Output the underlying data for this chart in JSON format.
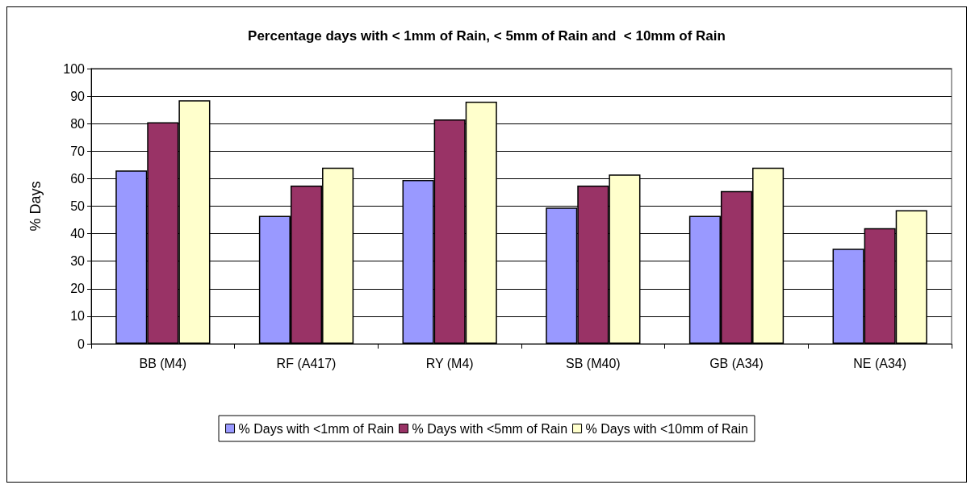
{
  "chart_data": {
    "type": "bar",
    "title": "Percentage days with < 1mm of Rain, < 5mm of Rain and  < 10mm of Rain",
    "ylabel": "% Days",
    "categories": [
      "BB (M4)",
      "RF (A417)",
      "RY (M4)",
      "SB (M40)",
      "GB (A34)",
      "NE (A34)"
    ],
    "series": [
      {
        "name": "% Days with <1mm of Rain",
        "color": "#9999ff",
        "values": [
          63,
          46.5,
          59.5,
          49.5,
          46.5,
          34.5
        ]
      },
      {
        "name": "% Days with <5mm of Rain",
        "color": "#993366",
        "values": [
          80.5,
          57.5,
          81.5,
          57.5,
          55.5,
          42
        ]
      },
      {
        "name": "% Days with <10mm of Rain",
        "color": "#ffffcc",
        "values": [
          88.5,
          64,
          88,
          61.5,
          64,
          48.5
        ]
      }
    ],
    "ylim": [
      0,
      100
    ],
    "yticks": [
      0,
      10,
      20,
      30,
      40,
      50,
      60,
      70,
      80,
      90,
      100
    ],
    "grid": "y",
    "legend": "bottom"
  }
}
